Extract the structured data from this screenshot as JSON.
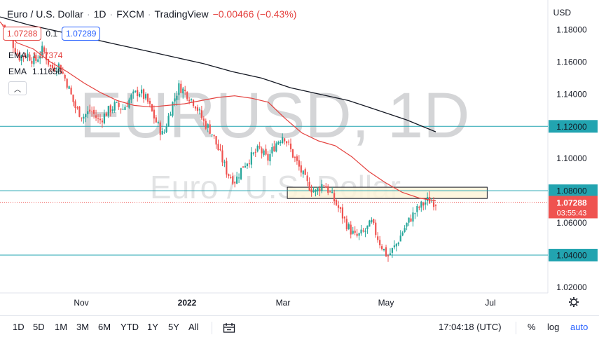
{
  "header": {
    "symbol": "Euro / U.S. Dollar",
    "interval": "1D",
    "exchange": "FXCM",
    "platform": "TradingView",
    "change": "−0.00466 (−0.43%)",
    "sell_price": "1.07288",
    "spread": "0.1",
    "buy_price": "1.07289",
    "currency": "USD"
  },
  "indicators": [
    {
      "name": "EMA",
      "value": "1.07374",
      "color": "#e4423f"
    },
    {
      "name": "EMA",
      "value": "1.11656",
      "color": "#131722"
    }
  ],
  "watermark": {
    "title": "EURUSD, 1D",
    "subtitle": "Euro / U.S. Dollar"
  },
  "toolbar": {
    "timeframes": [
      "1D",
      "5D",
      "1M",
      "3M",
      "6M",
      "YTD",
      "1Y",
      "5Y",
      "All"
    ],
    "clock": "17:04:18 (UTC)",
    "percent": "%",
    "log": "log",
    "auto": "auto"
  },
  "colors": {
    "up": "#26a69a",
    "down": "#ef5350",
    "ema_fast": "#e4423f",
    "ema_slow": "#131722",
    "level_line": "#22a4b0",
    "zone_fill": "#fdf3d8"
  },
  "chart_data": {
    "type": "candlestick",
    "y_axis": {
      "ticks": [
        "1.18000",
        "1.16000",
        "1.14000",
        "1.12000",
        "1.10000",
        "1.08000",
        "1.06000",
        "1.04000",
        "1.02000"
      ],
      "range": [
        1.0165,
        1.1985
      ]
    },
    "x_axis": {
      "labels": [
        "Nov",
        "2022",
        "Mar",
        "May",
        "Jul"
      ]
    },
    "last_price": "1.07288",
    "countdown": "03:55:43",
    "horizontal_levels": [
      {
        "price": 1.12,
        "label": "1.12000"
      },
      {
        "price": 1.08,
        "label": "1.08000"
      },
      {
        "price": 1.04,
        "label": "1.04000"
      }
    ],
    "zone": {
      "top": 1.0822,
      "bottom": 1.0752,
      "from": "2022-02-28",
      "to": "2022-06-20"
    },
    "ema_fast_path": [
      [
        1.185,
        1.172,
        1.168,
        1.16,
        1.154,
        1.147,
        1.141,
        1.136,
        1.133,
        1.132,
        1.133,
        1.134,
        1.136,
        1.138,
        1.139,
        1.1375,
        1.135,
        1.125,
        1.116,
        1.111,
        1.108,
        1.101,
        1.092,
        1.085,
        1.079,
        1.0755,
        1.0737
      ]
    ],
    "ema_slow_path": [
      [
        1.188,
        1.183,
        1.179,
        1.175,
        1.171,
        1.167,
        1.163,
        1.159,
        1.154,
        1.15,
        1.144,
        1.14,
        1.136,
        1.13,
        1.124,
        1.1166
      ]
    ],
    "close_path": [
      1.183,
      1.174,
      1.163,
      1.165,
      1.16,
      1.168,
      1.156,
      1.158,
      1.147,
      1.132,
      1.126,
      1.13,
      1.123,
      1.129,
      1.133,
      1.131,
      1.138,
      1.142,
      1.136,
      1.124,
      1.114,
      1.132,
      1.145,
      1.14,
      1.134,
      1.123,
      1.117,
      1.104,
      1.091,
      1.086,
      1.096,
      1.101,
      1.106,
      1.099,
      1.109,
      1.115,
      1.104,
      1.094,
      1.084,
      1.079,
      1.085,
      1.077,
      1.068,
      1.058,
      1.051,
      1.054,
      1.06,
      1.048,
      1.039,
      1.046,
      1.056,
      1.064,
      1.07,
      1.074,
      1.0729
    ]
  }
}
